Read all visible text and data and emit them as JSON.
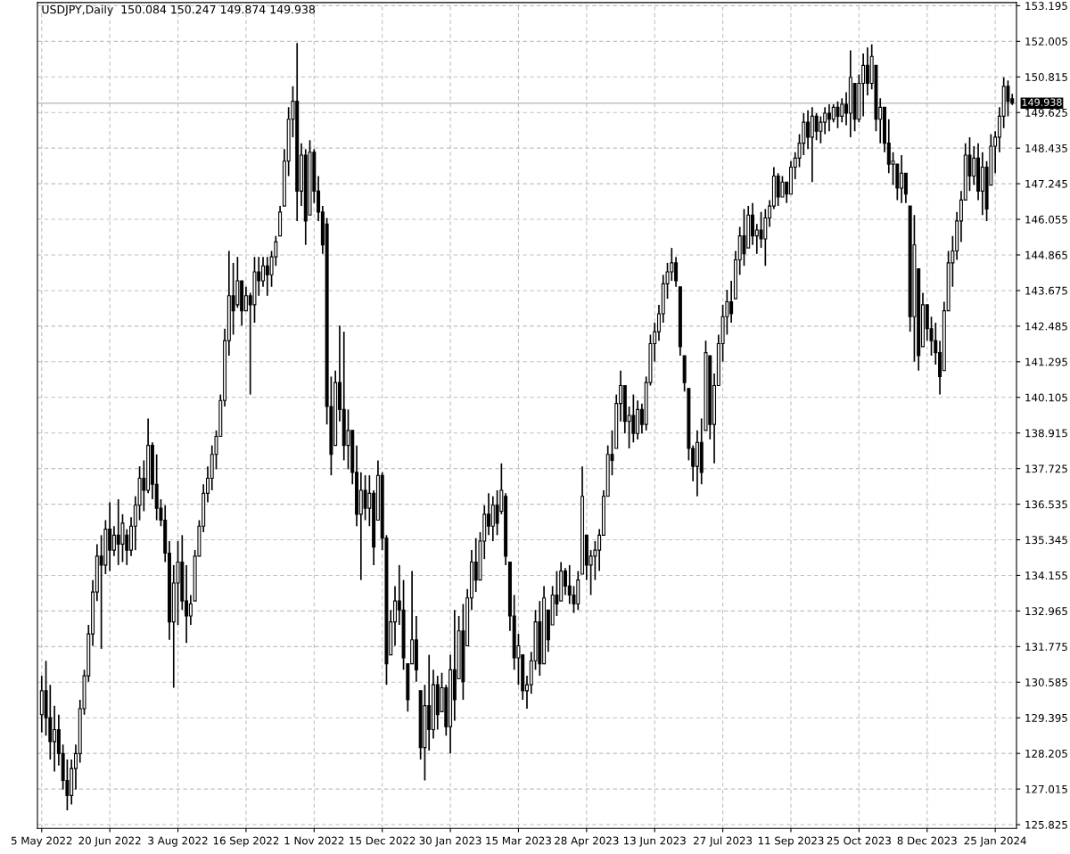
{
  "chart_data": {
    "type": "candlestick",
    "title": "USDJPY,Daily  150.084 150.247 149.874 149.938",
    "categories": [
      "5 May 2022",
      null,
      null,
      null,
      null,
      null,
      null,
      null,
      null,
      null,
      null,
      null,
      null,
      null,
      null,
      null,
      "20 Jun 2022",
      null,
      null,
      null,
      null,
      null,
      null,
      null,
      null,
      null,
      null,
      null,
      null,
      null,
      null,
      null,
      "3 Aug 2022",
      null,
      null,
      null,
      null,
      null,
      null,
      null,
      null,
      null,
      null,
      null,
      null,
      null,
      null,
      null,
      "16 Sep 2022",
      null,
      null,
      null,
      null,
      null,
      null,
      null,
      null,
      null,
      null,
      null,
      null,
      null,
      null,
      null,
      "1 Nov 2022",
      null,
      null,
      null,
      null,
      null,
      null,
      null,
      null,
      null,
      null,
      null,
      null,
      null,
      null,
      null,
      "15 Dec 2022",
      null,
      null,
      null,
      null,
      null,
      null,
      null,
      null,
      null,
      null,
      null,
      null,
      null,
      null,
      null,
      "30 Jan 2023",
      null,
      null,
      null,
      null,
      null,
      null,
      null,
      null,
      null,
      null,
      null,
      null,
      null,
      null,
      null,
      "15 Mar 2023",
      null,
      null,
      null,
      null,
      null,
      null,
      null,
      null,
      null,
      null,
      null,
      null,
      null,
      null,
      null,
      "28 Apr 2023",
      null,
      null,
      null,
      null,
      null,
      null,
      null,
      null,
      null,
      null,
      null,
      null,
      null,
      null,
      null,
      "13 Jun 2023",
      null,
      null,
      null,
      null,
      null,
      null,
      null,
      null,
      null,
      null,
      null,
      null,
      null,
      null,
      null,
      "27 Jul 2023",
      null,
      null,
      null,
      null,
      null,
      null,
      null,
      null,
      null,
      null,
      null,
      null,
      null,
      null,
      null,
      "11 Sep 2023",
      null,
      null,
      null,
      null,
      null,
      null,
      null,
      null,
      null,
      null,
      null,
      null,
      null,
      null,
      null,
      "25 Oct 2023",
      null,
      null,
      null,
      null,
      null,
      null,
      null,
      null,
      null,
      null,
      null,
      null,
      null,
      null,
      null,
      "8 Dec 2023",
      null,
      null,
      null,
      null,
      null,
      null,
      null,
      null,
      null,
      null,
      null,
      null,
      null,
      null,
      null,
      "25 Jan 2024",
      null,
      null,
      null,
      null
    ],
    "ohlc": [
      [
        129.5,
        130.8,
        128.9,
        130.3
      ],
      [
        130.3,
        131.3,
        128.8,
        129.4
      ],
      [
        129.4,
        130.5,
        128.0,
        128.6
      ],
      [
        128.6,
        129.8,
        127.6,
        129.0
      ],
      [
        129.0,
        129.5,
        127.8,
        128.2
      ],
      [
        128.2,
        128.5,
        127.0,
        127.3
      ],
      [
        127.3,
        128.0,
        126.3,
        126.8
      ],
      [
        126.8,
        128.0,
        126.5,
        127.7
      ],
      [
        127.7,
        128.5,
        127.0,
        128.2
      ],
      [
        128.2,
        130.0,
        127.9,
        129.7
      ],
      [
        129.7,
        131.0,
        129.5,
        130.8
      ],
      [
        130.8,
        132.5,
        130.6,
        132.2
      ],
      [
        132.2,
        134.0,
        131.8,
        133.6
      ],
      [
        133.6,
        135.2,
        133.3,
        134.8
      ],
      [
        134.8,
        135.5,
        131.7,
        134.5
      ],
      [
        134.5,
        136.0,
        134.2,
        135.7
      ],
      [
        135.7,
        136.6,
        134.3,
        135.0
      ],
      [
        135.0,
        135.8,
        134.8,
        135.5
      ],
      [
        135.5,
        136.7,
        134.5,
        135.2
      ],
      [
        135.2,
        136.2,
        134.6,
        135.9
      ],
      [
        135.5,
        135.7,
        134.5,
        135.0
      ],
      [
        135.0,
        136.1,
        134.8,
        135.8
      ],
      [
        135.8,
        136.8,
        135.0,
        136.5
      ],
      [
        136.5,
        137.8,
        136.0,
        137.4
      ],
      [
        137.4,
        138.0,
        136.3,
        137.0
      ],
      [
        137.0,
        139.4,
        136.9,
        138.5
      ],
      [
        138.5,
        138.6,
        136.7,
        137.2
      ],
      [
        137.2,
        138.2,
        136.0,
        136.4
      ],
      [
        136.4,
        136.7,
        135.8,
        136.0
      ],
      [
        136.0,
        136.5,
        134.6,
        134.9
      ],
      [
        134.9,
        135.3,
        132.0,
        132.6
      ],
      [
        132.6,
        134.5,
        130.4,
        133.9
      ],
      [
        133.9,
        135.3,
        132.5,
        134.6
      ],
      [
        134.6,
        135.5,
        133.0,
        133.3
      ],
      [
        133.3,
        134.5,
        131.9,
        132.8
      ],
      [
        132.8,
        133.5,
        132.5,
        133.2
      ],
      [
        133.3,
        135.0,
        133.3,
        134.8
      ],
      [
        134.8,
        136.0,
        134.8,
        135.8
      ],
      [
        135.8,
        137.2,
        135.6,
        136.9
      ],
      [
        136.9,
        137.8,
        136.6,
        137.4
      ],
      [
        137.4,
        138.5,
        137.0,
        138.2
      ],
      [
        138.2,
        139.0,
        137.7,
        138.8
      ],
      [
        138.8,
        140.2,
        138.8,
        140.0
      ],
      [
        140.0,
        142.4,
        139.8,
        142.0
      ],
      [
        142.0,
        145.0,
        141.5,
        143.5
      ],
      [
        143.5,
        144.6,
        142.2,
        143.0
      ],
      [
        143.2,
        144.8,
        143.1,
        144.0
      ],
      [
        144.0,
        144.0,
        142.5,
        143.0
      ],
      [
        143.0,
        143.8,
        143.0,
        143.5
      ],
      [
        143.5,
        143.6,
        140.2,
        143.2
      ],
      [
        143.2,
        144.8,
        142.6,
        144.3
      ],
      [
        144.3,
        144.8,
        143.5,
        144.0
      ],
      [
        144.0,
        144.8,
        143.8,
        144.5
      ],
      [
        144.5,
        144.8,
        143.5,
        144.2
      ],
      [
        144.2,
        145.0,
        143.8,
        144.8
      ],
      [
        144.8,
        145.5,
        144.5,
        145.3
      ],
      [
        145.5,
        146.5,
        145.5,
        146.3
      ],
      [
        146.5,
        148.4,
        146.5,
        148.0
      ],
      [
        148.0,
        149.8,
        147.5,
        149.4
      ],
      [
        149.4,
        150.5,
        148.8,
        150.0
      ],
      [
        150.0,
        151.95,
        146.0,
        147.0
      ],
      [
        147.0,
        148.6,
        146.5,
        148.2
      ],
      [
        148.2,
        148.4,
        145.2,
        146.0
      ],
      [
        146.2,
        148.7,
        146.2,
        148.3
      ],
      [
        148.3,
        148.4,
        146.6,
        147.0
      ],
      [
        147.0,
        147.5,
        146.0,
        146.3
      ],
      [
        146.3,
        146.5,
        144.9,
        145.2
      ],
      [
        145.9,
        146.1,
        139.2,
        139.8
      ],
      [
        139.8,
        140.8,
        137.5,
        138.2
      ],
      [
        138.5,
        141.0,
        138.5,
        140.6
      ],
      [
        140.6,
        142.5,
        139.3,
        139.7
      ],
      [
        139.7,
        142.3,
        138.0,
        138.5
      ],
      [
        138.5,
        139.7,
        137.7,
        139.0
      ],
      [
        139.0,
        139.0,
        137.2,
        137.6
      ],
      [
        137.6,
        138.5,
        135.8,
        136.2
      ],
      [
        136.2,
        137.6,
        134.0,
        137.0
      ],
      [
        137.0,
        137.5,
        136.0,
        136.4
      ],
      [
        136.4,
        137.5,
        135.8,
        136.9
      ],
      [
        136.9,
        137.0,
        134.5,
        135.1
      ],
      [
        136.0,
        138.0,
        136.0,
        137.5
      ],
      [
        137.5,
        137.6,
        135.0,
        135.4
      ],
      [
        135.4,
        135.5,
        130.5,
        131.2
      ],
      [
        131.5,
        133.0,
        131.5,
        132.6
      ],
      [
        132.6,
        133.8,
        131.8,
        133.3
      ],
      [
        133.3,
        134.5,
        132.5,
        133.0
      ],
      [
        133.0,
        134.0,
        131.0,
        131.4
      ],
      [
        131.2,
        131.2,
        129.6,
        130.0
      ],
      [
        131.2,
        134.3,
        131.2,
        132.0
      ],
      [
        132.0,
        132.8,
        130.6,
        131.0
      ],
      [
        130.3,
        130.3,
        128.0,
        128.4
      ],
      [
        128.4,
        130.5,
        127.3,
        129.8
      ],
      [
        129.8,
        131.5,
        128.3,
        129.0
      ],
      [
        129.0,
        131.0,
        128.7,
        130.5
      ],
      [
        130.5,
        130.8,
        129.0,
        129.5
      ],
      [
        129.6,
        130.9,
        129.6,
        130.4
      ],
      [
        130.4,
        130.5,
        128.8,
        129.1
      ],
      [
        129.1,
        131.5,
        128.2,
        131.0
      ],
      [
        131.0,
        133.0,
        129.3,
        130.0
      ],
      [
        130.7,
        132.8,
        130.7,
        132.3
      ],
      [
        132.3,
        133.2,
        130.0,
        130.6
      ],
      [
        131.8,
        133.7,
        131.8,
        133.4
      ],
      [
        133.4,
        135.0,
        133.0,
        134.6
      ],
      [
        134.6,
        135.4,
        133.6,
        134.0
      ],
      [
        134.0,
        135.6,
        134.0,
        135.3
      ],
      [
        135.3,
        136.5,
        134.7,
        136.2
      ],
      [
        136.2,
        136.9,
        135.5,
        135.8
      ],
      [
        135.8,
        136.8,
        135.3,
        136.5
      ],
      [
        136.5,
        137.0,
        135.5,
        135.9
      ],
      [
        136.3,
        137.9,
        136.2,
        137.0
      ],
      [
        136.8,
        136.9,
        134.5,
        134.8
      ],
      [
        134.6,
        134.6,
        132.3,
        132.8
      ],
      [
        132.8,
        133.5,
        131.0,
        131.4
      ],
      [
        131.4,
        132.2,
        130.5,
        131.8
      ],
      [
        131.5,
        131.5,
        130.0,
        130.3
      ],
      [
        130.3,
        130.8,
        129.7,
        130.5
      ],
      [
        130.5,
        131.6,
        130.2,
        131.3
      ],
      [
        131.3,
        133.0,
        131.0,
        132.6
      ],
      [
        132.6,
        133.3,
        130.8,
        131.2
      ],
      [
        131.2,
        133.8,
        131.2,
        133.4
      ],
      [
        133.0,
        133.0,
        131.6,
        132.0
      ],
      [
        132.5,
        133.8,
        132.5,
        133.5
      ],
      [
        133.5,
        134.3,
        132.8,
        133.2
      ],
      [
        133.3,
        134.6,
        133.3,
        134.3
      ],
      [
        134.3,
        134.4,
        133.5,
        133.8
      ],
      [
        133.8,
        134.5,
        133.2,
        133.5
      ],
      [
        133.5,
        133.8,
        132.9,
        133.2
      ],
      [
        133.2,
        134.3,
        133.0,
        134.0
      ],
      [
        134.2,
        137.8,
        134.2,
        136.8
      ],
      [
        135.5,
        135.5,
        134.0,
        134.5
      ],
      [
        134.5,
        135.0,
        133.5,
        134.8
      ],
      [
        134.8,
        135.3,
        134.0,
        135.0
      ],
      [
        135.0,
        135.7,
        134.3,
        135.5
      ],
      [
        135.5,
        137.0,
        135.5,
        136.8
      ],
      [
        136.8,
        138.5,
        136.8,
        138.2
      ],
      [
        138.2,
        139.0,
        137.5,
        138.0
      ],
      [
        138.4,
        140.2,
        138.4,
        139.9
      ],
      [
        139.9,
        141.0,
        139.3,
        140.5
      ],
      [
        140.5,
        140.5,
        138.9,
        139.3
      ],
      [
        139.3,
        139.8,
        138.4,
        139.5
      ],
      [
        139.5,
        140.2,
        138.6,
        138.9
      ],
      [
        138.9,
        140.0,
        138.7,
        139.7
      ],
      [
        139.7,
        139.9,
        138.9,
        139.2
      ],
      [
        139.2,
        140.8,
        139.0,
        140.6
      ],
      [
        140.6,
        142.2,
        140.5,
        141.9
      ],
      [
        141.9,
        142.6,
        141.3,
        142.3
      ],
      [
        142.3,
        143.2,
        142.0,
        142.9
      ],
      [
        142.9,
        144.2,
        142.6,
        143.9
      ],
      [
        143.9,
        144.6,
        143.4,
        144.3
      ],
      [
        144.3,
        145.1,
        144.0,
        144.6
      ],
      [
        144.6,
        144.8,
        143.8,
        144.0
      ],
      [
        143.8,
        143.8,
        141.5,
        141.8
      ],
      [
        141.5,
        141.5,
        140.3,
        140.6
      ],
      [
        140.4,
        140.4,
        138.0,
        138.4
      ],
      [
        138.4,
        138.5,
        137.3,
        137.8
      ],
      [
        137.8,
        139.0,
        136.8,
        138.6
      ],
      [
        138.6,
        139.4,
        137.2,
        137.6
      ],
      [
        139.0,
        142.0,
        139.0,
        141.6
      ],
      [
        141.5,
        141.5,
        138.7,
        139.2
      ],
      [
        139.2,
        140.9,
        137.9,
        140.5
      ],
      [
        140.5,
        142.2,
        140.5,
        141.9
      ],
      [
        141.9,
        143.2,
        141.3,
        142.8
      ],
      [
        142.8,
        143.7,
        142.2,
        143.3
      ],
      [
        143.3,
        144.0,
        142.6,
        142.9
      ],
      [
        143.4,
        145.0,
        143.4,
        144.7
      ],
      [
        144.7,
        145.8,
        144.2,
        145.5
      ],
      [
        145.5,
        146.4,
        144.5,
        144.9
      ],
      [
        145.1,
        146.5,
        145.1,
        146.2
      ],
      [
        146.2,
        146.6,
        145.2,
        145.5
      ],
      [
        145.5,
        145.9,
        144.9,
        145.7
      ],
      [
        145.7,
        146.3,
        145.1,
        145.4
      ],
      [
        145.4,
        146.4,
        144.5,
        146.1
      ],
      [
        146.1,
        146.7,
        145.8,
        146.5
      ],
      [
        146.5,
        147.8,
        146.4,
        147.5
      ],
      [
        147.5,
        147.6,
        146.5,
        146.8
      ],
      [
        146.8,
        147.5,
        146.8,
        147.3
      ],
      [
        147.3,
        147.3,
        146.6,
        146.9
      ],
      [
        146.9,
        148.0,
        146.9,
        147.8
      ],
      [
        147.8,
        148.3,
        147.4,
        148.1
      ],
      [
        148.1,
        148.9,
        147.8,
        148.6
      ],
      [
        148.6,
        149.6,
        148.2,
        149.3
      ],
      [
        149.3,
        149.7,
        148.4,
        148.8
      ],
      [
        148.8,
        149.8,
        147.3,
        149.5
      ],
      [
        149.5,
        149.6,
        148.7,
        149.0
      ],
      [
        149.0,
        149.5,
        148.6,
        149.3
      ],
      [
        149.3,
        149.8,
        148.9,
        149.6
      ],
      [
        149.6,
        149.9,
        149.0,
        149.4
      ],
      [
        149.4,
        149.9,
        149.3,
        149.8
      ],
      [
        149.8,
        150.0,
        149.1,
        149.5
      ],
      [
        149.5,
        150.1,
        149.3,
        149.9
      ],
      [
        149.9,
        150.3,
        149.2,
        149.6
      ],
      [
        149.6,
        151.7,
        148.8,
        150.8
      ],
      [
        150.6,
        150.6,
        149.0,
        149.4
      ],
      [
        149.4,
        150.9,
        149.3,
        150.6
      ],
      [
        150.6,
        151.6,
        149.5,
        151.2
      ],
      [
        151.2,
        151.8,
        150.2,
        150.6
      ],
      [
        150.6,
        151.9,
        150.4,
        151.5
      ],
      [
        151.2,
        151.2,
        149.0,
        149.4
      ],
      [
        149.4,
        150.1,
        148.6,
        149.8
      ],
      [
        149.8,
        149.8,
        148.3,
        148.6
      ],
      [
        148.6,
        149.4,
        147.6,
        147.9
      ],
      [
        147.9,
        148.3,
        147.2,
        148.0
      ],
      [
        147.9,
        147.9,
        146.7,
        147.1
      ],
      [
        147.1,
        148.2,
        146.6,
        147.6
      ],
      [
        147.6,
        147.6,
        146.6,
        146.9
      ],
      [
        146.5,
        146.5,
        142.3,
        142.8
      ],
      [
        142.8,
        146.2,
        141.3,
        145.2
      ],
      [
        144.4,
        144.4,
        141.0,
        141.5
      ],
      [
        141.8,
        143.6,
        141.8,
        143.2
      ],
      [
        143.2,
        143.2,
        142.0,
        142.4
      ],
      [
        142.4,
        142.8,
        141.5,
        142.0
      ],
      [
        142.0,
        142.6,
        141.2,
        141.6
      ],
      [
        141.6,
        142.0,
        140.2,
        140.8
      ],
      [
        141.0,
        143.3,
        141.0,
        143.0
      ],
      [
        143.0,
        145.0,
        143.0,
        144.6
      ],
      [
        144.6,
        145.5,
        143.8,
        145.0
      ],
      [
        145.0,
        146.3,
        144.7,
        146.0
      ],
      [
        146.0,
        147.0,
        145.3,
        146.7
      ],
      [
        146.7,
        148.6,
        146.7,
        148.2
      ],
      [
        148.2,
        148.8,
        147.0,
        147.5
      ],
      [
        147.5,
        148.5,
        147.2,
        148.1
      ],
      [
        148.1,
        148.6,
        146.7,
        147.0
      ],
      [
        147.0,
        148.3,
        146.2,
        147.8
      ],
      [
        147.8,
        148.0,
        146.0,
        146.4
      ],
      [
        147.2,
        148.9,
        147.2,
        148.5
      ],
      [
        148.5,
        149.0,
        147.6,
        148.8
      ],
      [
        148.8,
        149.8,
        148.3,
        149.5
      ],
      [
        149.5,
        150.8,
        149.1,
        150.5
      ],
      [
        150.5,
        150.7,
        149.5,
        150.0
      ],
      [
        150.084,
        150.247,
        149.874,
        149.938
      ]
    ],
    "color": "#000000",
    "ylim": [
      125.7,
      153.3
    ],
    "yticks": [
      125.825,
      127.015,
      128.205,
      129.395,
      130.585,
      131.775,
      132.965,
      134.155,
      135.345,
      136.535,
      137.725,
      138.915,
      140.105,
      141.295,
      142.485,
      143.675,
      144.865,
      146.055,
      147.245,
      148.435,
      149.625,
      150.815,
      152.005,
      153.195
    ],
    "ref_lines": [
      {
        "axis": "y",
        "value": 149.938,
        "label": "149.938",
        "color": "#c0c0c0"
      }
    ],
    "grid": true,
    "line_style": "solid"
  }
}
